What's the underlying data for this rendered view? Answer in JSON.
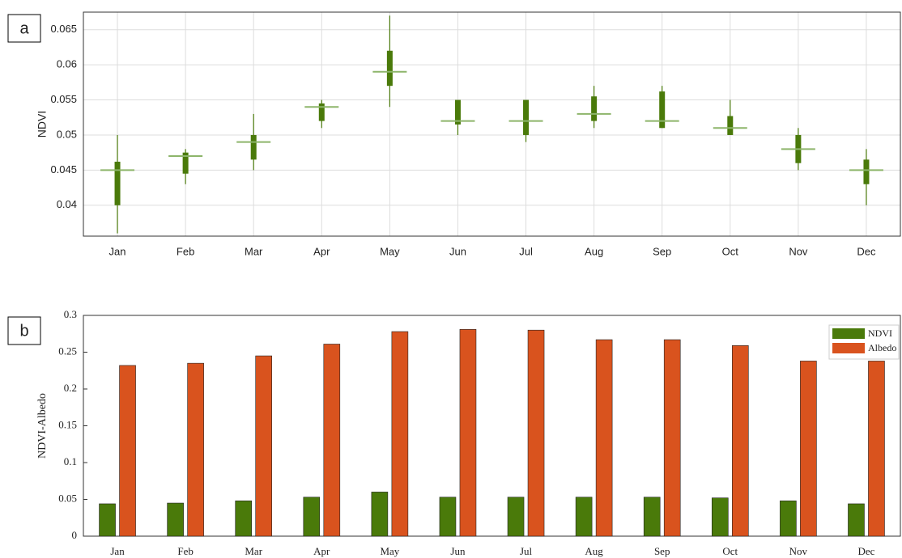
{
  "chart_data": [
    {
      "type": "box",
      "panel_label": "a",
      "ylabel": "NDVI",
      "categories": [
        "Jan",
        "Feb",
        "Mar",
        "Apr",
        "May",
        "Jun",
        "Jul",
        "Aug",
        "Sep",
        "Oct",
        "Nov",
        "Dec"
      ],
      "median": [
        0.045,
        0.047,
        0.049,
        0.054,
        0.059,
        0.052,
        0.052,
        0.053,
        0.052,
        0.051,
        0.048,
        0.045
      ],
      "q1": [
        0.04,
        0.0445,
        0.0465,
        0.052,
        0.057,
        0.0515,
        0.05,
        0.052,
        0.051,
        0.05,
        0.046,
        0.043
      ],
      "q3": [
        0.0462,
        0.0475,
        0.05,
        0.0545,
        0.062,
        0.055,
        0.055,
        0.0555,
        0.0562,
        0.0527,
        0.05,
        0.0465
      ],
      "min": [
        0.036,
        0.043,
        0.045,
        0.051,
        0.054,
        0.05,
        0.049,
        0.051,
        0.051,
        0.05,
        0.045,
        0.04
      ],
      "max": [
        0.05,
        0.048,
        0.053,
        0.055,
        0.067,
        0.055,
        0.055,
        0.057,
        0.057,
        0.055,
        0.051,
        0.048
      ],
      "color": "#4a7a0a",
      "median_color": "#8db56a",
      "ylim": [
        0.0356,
        0.0675
      ],
      "yticks": [
        0.04,
        0.045,
        0.05,
        0.055,
        0.06,
        0.065
      ],
      "grid": true
    },
    {
      "type": "bar",
      "panel_label": "b",
      "ylabel": "NDVI-Albedo",
      "categories": [
        "Jan",
        "Feb",
        "Mar",
        "Apr",
        "May",
        "Jun",
        "Jul",
        "Aug",
        "Sep",
        "Oct",
        "Nov",
        "Dec"
      ],
      "series": [
        {
          "name": "NDVI",
          "color": "#4a7a0a",
          "values": [
            0.044,
            0.045,
            0.048,
            0.053,
            0.06,
            0.053,
            0.053,
            0.053,
            0.053,
            0.052,
            0.048,
            0.044
          ]
        },
        {
          "name": "Albedo",
          "color": "#d9531e",
          "values": [
            0.232,
            0.235,
            0.245,
            0.261,
            0.278,
            0.281,
            0.28,
            0.267,
            0.267,
            0.259,
            0.238,
            0.238
          ]
        }
      ],
      "ylim": [
        0,
        0.3
      ],
      "yticks": [
        0,
        0.05,
        0.1,
        0.15,
        0.2,
        0.25,
        0.3
      ],
      "grid": false,
      "legend": "upper-right"
    }
  ]
}
